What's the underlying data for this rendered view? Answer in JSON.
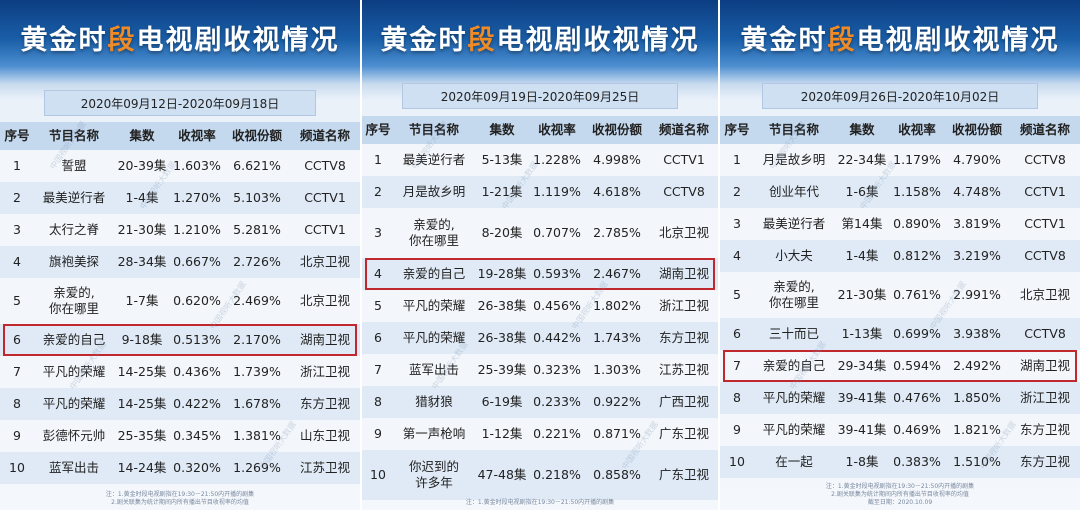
{
  "title_parts": {
    "pre": "黄金时",
    "hl": "段",
    "post": "电视剧收视情况"
  },
  "headers": [
    "序号",
    "节目名称",
    "集数",
    "收视率",
    "收视份额",
    "频道名称"
  ],
  "panels": [
    {
      "date": "2020年09月12日-2020年09月18日",
      "highlight": 6,
      "rows": [
        [
          "1",
          "誓盟",
          "20-39集",
          "1.603%",
          "6.621%",
          "CCTV8"
        ],
        [
          "2",
          "最美逆行者",
          "1-4集",
          "1.270%",
          "5.103%",
          "CCTV1"
        ],
        [
          "3",
          "太行之脊",
          "21-30集",
          "1.210%",
          "5.281%",
          "CCTV1"
        ],
        [
          "4",
          "旗袍美探",
          "28-34集",
          "0.667%",
          "2.726%",
          "北京卫视"
        ],
        [
          "5",
          "亲爱的,\n你在哪里",
          "1-7集",
          "0.620%",
          "2.469%",
          "北京卫视"
        ],
        [
          "6",
          "亲爱的自己",
          "9-18集",
          "0.513%",
          "2.170%",
          "湖南卫视"
        ],
        [
          "7",
          "平凡的荣耀",
          "14-25集",
          "0.436%",
          "1.739%",
          "浙江卫视"
        ],
        [
          "8",
          "平凡的荣耀",
          "14-25集",
          "0.422%",
          "1.678%",
          "东方卫视"
        ],
        [
          "9",
          "彭德怀元帅",
          "25-35集",
          "0.345%",
          "1.381%",
          "山东卫视"
        ],
        [
          "10",
          "蓝军出击",
          "14-24集",
          "0.320%",
          "1.269%",
          "江苏卫视"
        ]
      ],
      "footnote": [
        "注：1.黄金时段电视剧指在19:30－21:50内开播的剧集",
        "2.剧关联集为统计期间内所有播出节目收视率的均值"
      ]
    },
    {
      "date": "2020年09月19日-2020年09月25日",
      "highlight": 4,
      "rows": [
        [
          "1",
          "最美逆行者",
          "5-13集",
          "1.228%",
          "4.998%",
          "CCTV1"
        ],
        [
          "2",
          "月是故乡明",
          "1-21集",
          "1.119%",
          "4.618%",
          "CCTV8"
        ],
        [
          "3",
          "亲爱的,\n你在哪里",
          "8-20集",
          "0.707%",
          "2.785%",
          "北京卫视"
        ],
        [
          "4",
          "亲爱的自己",
          "19-28集",
          "0.593%",
          "2.467%",
          "湖南卫视"
        ],
        [
          "5",
          "平凡的荣耀",
          "26-38集",
          "0.456%",
          "1.802%",
          "浙江卫视"
        ],
        [
          "6",
          "平凡的荣耀",
          "26-38集",
          "0.442%",
          "1.743%",
          "东方卫视"
        ],
        [
          "7",
          "蓝军出击",
          "25-39集",
          "0.323%",
          "1.303%",
          "江苏卫视"
        ],
        [
          "8",
          "猎豺狼",
          "6-19集",
          "0.233%",
          "0.922%",
          "广西卫视"
        ],
        [
          "9",
          "第一声枪响",
          "1-12集",
          "0.221%",
          "0.871%",
          "广东卫视"
        ],
        [
          "10",
          "你迟到的\n许多年",
          "47-48集",
          "0.218%",
          "0.858%",
          "广东卫视"
        ]
      ],
      "footnote": [
        "注：1.黄金时段电视剧指在19:30－21:50内开播的剧集"
      ]
    },
    {
      "date": "2020年09月26日-2020年10月02日",
      "highlight": 7,
      "rows": [
        [
          "1",
          "月是故乡明",
          "22-34集",
          "1.179%",
          "4.790%",
          "CCTV8"
        ],
        [
          "2",
          "创业年代",
          "1-6集",
          "1.158%",
          "4.748%",
          "CCTV1"
        ],
        [
          "3",
          "最美逆行者",
          "第14集",
          "0.890%",
          "3.819%",
          "CCTV1"
        ],
        [
          "4",
          "小大夫",
          "1-4集",
          "0.812%",
          "3.219%",
          "CCTV8"
        ],
        [
          "5",
          "亲爱的,\n你在哪里",
          "21-30集",
          "0.761%",
          "2.991%",
          "北京卫视"
        ],
        [
          "6",
          "三十而已",
          "1-13集",
          "0.699%",
          "3.938%",
          "CCTV8"
        ],
        [
          "7",
          "亲爱的自己",
          "29-34集",
          "0.594%",
          "2.492%",
          "湖南卫视"
        ],
        [
          "8",
          "平凡的荣耀",
          "39-41集",
          "0.476%",
          "1.850%",
          "浙江卫视"
        ],
        [
          "9",
          "平凡的荣耀",
          "39-41集",
          "0.469%",
          "1.821%",
          "东方卫视"
        ],
        [
          "10",
          "在一起",
          "1-8集",
          "0.383%",
          "1.510%",
          "东方卫视"
        ]
      ],
      "footnote": [
        "注：1.黄金时段电视剧指在19:30－21:50内开播的剧集",
        "2.剧关联集为统计期间内所有播出节目收视率的均值",
        "截至日期：2020.10.09"
      ]
    }
  ],
  "watermark": "中国视听大数据"
}
